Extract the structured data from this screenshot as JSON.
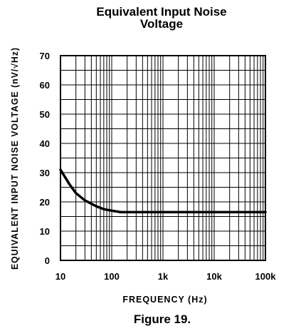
{
  "chart_data": {
    "type": "line",
    "title_line1": "Equivalent Input Noise",
    "title_line2": "Voltage",
    "xlabel": "FREQUENCY (Hz)",
    "ylabel": "EQUIVALENT INPUT NOISE VOLTAGE (nV/√Hz)",
    "x_scale": "log",
    "xlim": [
      10,
      100000
    ],
    "ylim": [
      0,
      70
    ],
    "grid": true,
    "x_ticks": [
      10,
      100,
      1000,
      10000,
      100000
    ],
    "x_tick_labels": [
      "10",
      "100",
      "1k",
      "10k",
      "100k"
    ],
    "y_ticks": [
      0,
      10,
      20,
      30,
      40,
      50,
      60,
      70
    ],
    "y_tick_labels": [
      "0",
      "10",
      "20",
      "30",
      "40",
      "50",
      "60",
      "70"
    ],
    "series": [
      {
        "x": [
          10,
          15,
          20,
          30,
          50,
          70,
          100,
          150,
          200,
          300,
          1000,
          10000,
          100000
        ],
        "y": [
          31,
          26,
          23,
          20.5,
          18.5,
          17.5,
          17,
          16.5,
          16.5,
          16.5,
          16.5,
          16.5,
          16.5
        ]
      }
    ]
  },
  "caption": "Figure 19."
}
